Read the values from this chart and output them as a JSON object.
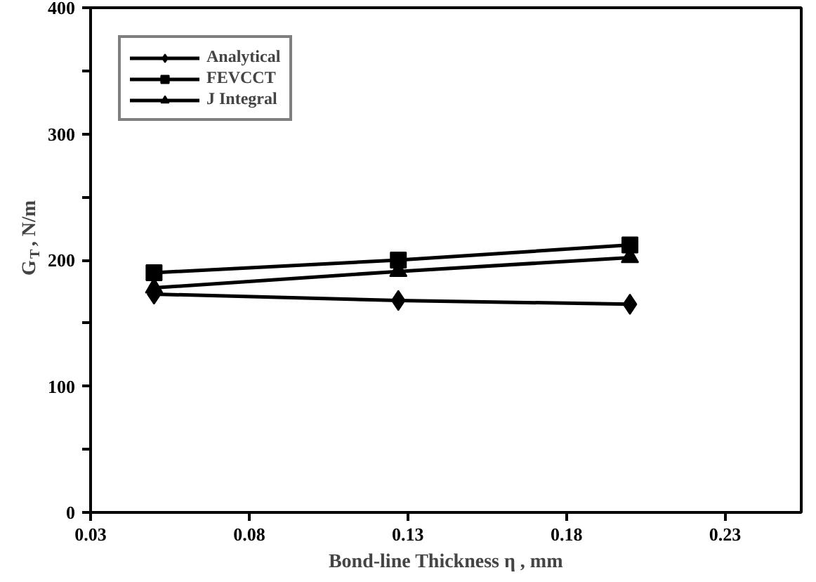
{
  "chart_data": {
    "type": "line",
    "xlabel": "Bond-line Thickness η , mm",
    "ylabel": "G$_{T}$, N/m",
    "x": [
      0.05,
      0.127,
      0.2
    ],
    "series": [
      {
        "name": "Analytical",
        "color": "#000000",
        "values": [
          173,
          168,
          165
        ],
        "marker": "diamond"
      },
      {
        "name": "FEVCCT",
        "color": "#000000",
        "values": [
          190,
          200,
          212
        ],
        "marker": "square"
      },
      {
        "name": "J Integral",
        "color": "#000000",
        "values": [
          178,
          191,
          202
        ],
        "marker": "triangle"
      }
    ],
    "xlim": [
      0.03,
      0.254
    ],
    "ylim": [
      0,
      400
    ],
    "xticks": [
      0.03,
      0.08,
      0.13,
      0.18,
      0.23
    ],
    "yticks": [
      0,
      {
        "value": 50,
        "label": null
      },
      100,
      {
        "value": 150,
        "label": null
      },
      200,
      {
        "value": 250,
        "label": null
      },
      300,
      {
        "value": 350,
        "label": null
      },
      400
    ],
    "grid": false,
    "legend": "top left",
    "line_style": "solid"
  }
}
